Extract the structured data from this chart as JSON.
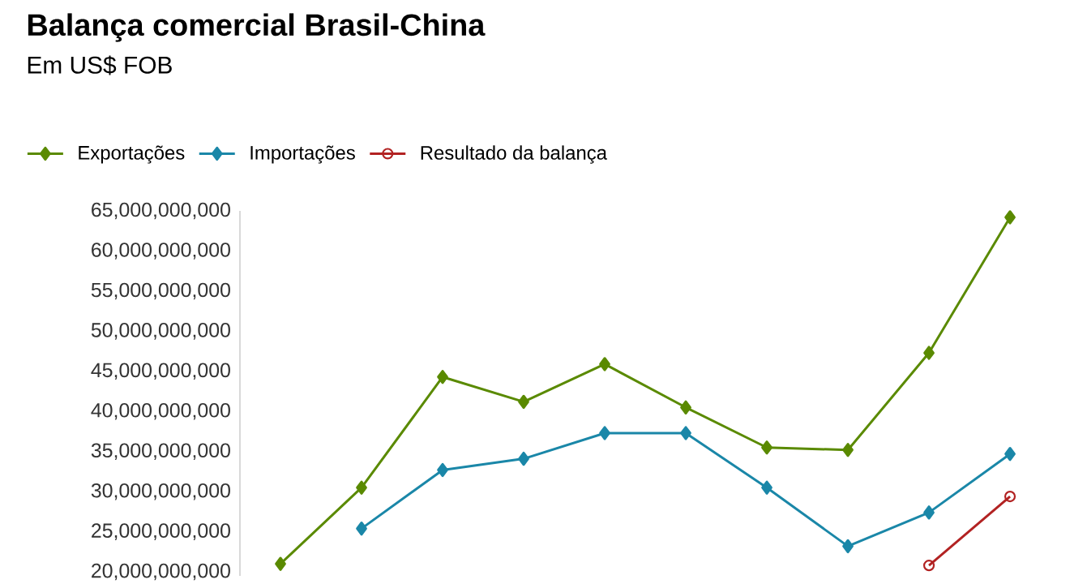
{
  "chart_data": {
    "type": "line",
    "title": "Balança comercial Brasil-China",
    "subtitle": "Em US$ FOB",
    "categories": [
      null,
      null,
      null,
      null,
      null,
      null,
      null,
      null,
      null,
      null
    ],
    "series": [
      {
        "name": "Exportações",
        "color": "#5a8a00",
        "marker": "diamond",
        "values": [
          21000000000.0,
          30500000000.0,
          44300000000.0,
          41200000000.0,
          45900000000.0,
          40500000000.0,
          35500000000.0,
          35200000000.0,
          47300000000.0,
          64200000000.0
        ]
      },
      {
        "name": "Importações",
        "color": "#1a87a8",
        "marker": "diamond",
        "values": [
          null,
          25400000000.0,
          32700000000.0,
          34100000000.0,
          37300000000.0,
          37300000000.0,
          30500000000.0,
          23200000000.0,
          27400000000.0,
          34700000000.0
        ]
      },
      {
        "name": "Resultado da balança",
        "color": "#b22222",
        "marker": "circle",
        "values": [
          null,
          null,
          null,
          null,
          null,
          null,
          null,
          null,
          20800000000.0,
          29400000000.0
        ]
      }
    ],
    "ylim": [
      19500000000,
      65000000000
    ],
    "yticks": [
      {
        "value": 20000000000,
        "label": "20,000,000,000"
      },
      {
        "value": 25000000000,
        "label": "25,000,000,000"
      },
      {
        "value": 30000000000,
        "label": "30,000,000,000"
      },
      {
        "value": 35000000000,
        "label": "35,000,000,000"
      },
      {
        "value": 40000000000,
        "label": "40,000,000,000"
      },
      {
        "value": 45000000000,
        "label": "45,000,000,000"
      },
      {
        "value": 50000000000,
        "label": "50,000,000,000"
      },
      {
        "value": 55000000000,
        "label": "55,000,000,000"
      },
      {
        "value": 60000000000,
        "label": "60,000,000,000"
      },
      {
        "value": 65000000000,
        "label": "65,000,000,000"
      }
    ],
    "tick_labels": "y",
    "grid": false,
    "legend": "top left",
    "line_style": "solid"
  }
}
